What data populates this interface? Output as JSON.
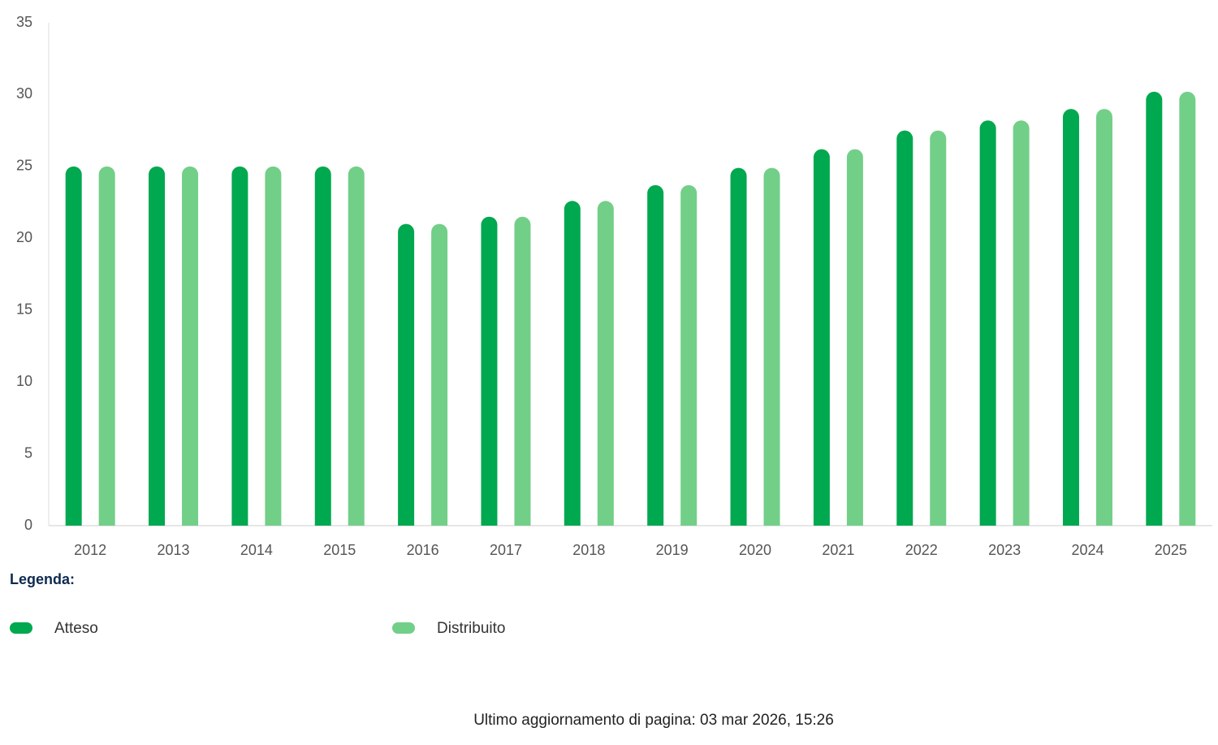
{
  "chart_data": {
    "type": "bar",
    "categories": [
      "2012",
      "2013",
      "2014",
      "2015",
      "2016",
      "2017",
      "2018",
      "2019",
      "2020",
      "2021",
      "2022",
      "2023",
      "2024",
      "2025"
    ],
    "series": [
      {
        "name": "Atteso",
        "color": "#00a84f",
        "values": [
          25,
          25,
          25,
          25,
          21,
          21.5,
          22.6,
          23.7,
          24.9,
          26.2,
          27.5,
          28.2,
          29,
          30.2
        ]
      },
      {
        "name": "Distribuito",
        "color": "#72cf88",
        "values": [
          25,
          25,
          25,
          25,
          21,
          21.5,
          22.6,
          23.7,
          24.9,
          26.2,
          27.5,
          28.2,
          29,
          30.2
        ]
      }
    ],
    "ylim": [
      0,
      35
    ],
    "yticks": [
      0,
      5,
      10,
      15,
      20,
      25,
      30,
      35
    ],
    "legend_title": "Legenda:"
  },
  "footer": "Ultimo aggiornamento di pagina: 03 mar 2026, 15:26"
}
